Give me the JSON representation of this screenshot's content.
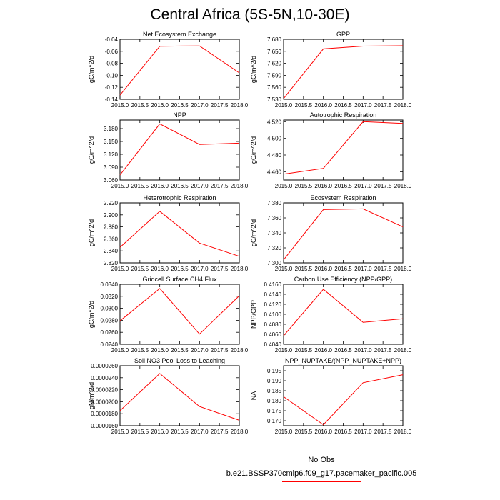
{
  "page": {
    "title": "Central Africa (5S-5N,10-30E)"
  },
  "legend": {
    "obs_label": "No Obs",
    "model_label": "b.e21.BSSP370cmip6.f09_g17.pacemaker_pacific.005",
    "obs_color": "#8f8fff",
    "model_color": "#ff0000"
  },
  "chart_data": [
    {
      "type": "line",
      "title": "Net Ecosystem Exchange",
      "ylabel": "gC/m^2/d",
      "xlim": [
        2015.0,
        2018.0
      ],
      "ylim": [
        -0.14,
        -0.04
      ],
      "x_ticks": [
        "2015.0",
        "2015.5",
        "2016.0",
        "2016.5",
        "2017.0",
        "2017.5",
        "2018.0"
      ],
      "y_ticks": [
        "-0.04",
        "-0.06",
        "-0.08",
        "-0.10",
        "-0.12",
        "-0.14"
      ],
      "series": [
        {
          "x": [
            2015,
            2016,
            2017,
            2018
          ],
          "values": [
            -0.133,
            -0.0515,
            -0.051,
            -0.096
          ],
          "color": "#ff0000"
        }
      ]
    },
    {
      "type": "line",
      "title": "GPP",
      "ylabel": "gC/m^2/d",
      "xlim": [
        2015.0,
        2018.0
      ],
      "ylim": [
        7.53,
        7.68
      ],
      "x_ticks": [
        "2015.0",
        "2015.5",
        "2016.0",
        "2016.5",
        "2017.0",
        "2017.5",
        "2018.0"
      ],
      "y_ticks": [
        "7.680",
        "7.650",
        "7.620",
        "7.590",
        "7.560",
        "7.530"
      ],
      "series": [
        {
          "x": [
            2015,
            2016,
            2017,
            2018
          ],
          "values": [
            7.532,
            7.656,
            7.663,
            7.664
          ],
          "color": "#ff0000"
        }
      ]
    },
    {
      "type": "line",
      "title": "NPP",
      "ylabel": "gC/m^2/d",
      "xlim": [
        2015.0,
        2018.0
      ],
      "ylim": [
        3.06,
        3.2
      ],
      "x_ticks": [
        "2015.0",
        "2015.5",
        "2016.0",
        "2016.5",
        "2017.0",
        "2017.5",
        "2018.0"
      ],
      "y_ticks": [
        "3.180",
        "3.150",
        "3.120",
        "3.090",
        "3.060"
      ],
      "series": [
        {
          "x": [
            2015,
            2016,
            2017,
            2018
          ],
          "values": [
            3.072,
            3.191,
            3.143,
            3.146
          ],
          "color": "#ff0000"
        }
      ]
    },
    {
      "type": "line",
      "title": "Autotrophic Respiration",
      "ylabel": "gC/m^2/d",
      "xlim": [
        2015.0,
        2018.0
      ],
      "ylim": [
        4.45,
        4.522
      ],
      "x_ticks": [
        "2015.0",
        "2015.5",
        "2016.0",
        "2016.5",
        "2017.0",
        "2017.5",
        "2018.0"
      ],
      "y_ticks": [
        "4.520",
        "4.500",
        "4.480",
        "4.460"
      ],
      "series": [
        {
          "x": [
            2015,
            2016,
            2017,
            2018
          ],
          "values": [
            4.457,
            4.464,
            4.52,
            4.518
          ],
          "color": "#ff0000"
        }
      ]
    },
    {
      "type": "line",
      "title": "Heterotrophic Respiration",
      "ylabel": "gC/m^2/d",
      "xlim": [
        2015.0,
        2018.0
      ],
      "ylim": [
        2.82,
        2.92
      ],
      "x_ticks": [
        "2015.0",
        "2015.5",
        "2016.0",
        "2016.5",
        "2017.0",
        "2017.5",
        "2018.0"
      ],
      "y_ticks": [
        "2.920",
        "2.900",
        "2.880",
        "2.860",
        "2.840",
        "2.820"
      ],
      "series": [
        {
          "x": [
            2015,
            2016,
            2017,
            2018
          ],
          "values": [
            2.846,
            2.906,
            2.853,
            2.831
          ],
          "color": "#ff0000"
        }
      ]
    },
    {
      "type": "line",
      "title": "Ecosystem Respiration",
      "ylabel": "gC/m^2/d",
      "xlim": [
        2015.0,
        2018.0
      ],
      "ylim": [
        7.3,
        7.38
      ],
      "x_ticks": [
        "2015.0",
        "2015.5",
        "2016.0",
        "2016.5",
        "2017.0",
        "2017.5",
        "2018.0"
      ],
      "y_ticks": [
        "7.380",
        "7.360",
        "7.340",
        "7.320",
        "7.300"
      ],
      "series": [
        {
          "x": [
            2015,
            2016,
            2017,
            2018
          ],
          "values": [
            7.304,
            7.371,
            7.372,
            7.348
          ],
          "color": "#ff0000"
        }
      ]
    },
    {
      "type": "line",
      "title": "Gridcell Surface CH4 Flux",
      "ylabel": "gC/m^2/d",
      "xlim": [
        2015.0,
        2018.0
      ],
      "ylim": [
        0.024,
        0.034
      ],
      "x_ticks": [
        "2015.0",
        "2015.5",
        "2016.0",
        "2016.5",
        "2017.0",
        "2017.5",
        "2018.0"
      ],
      "y_ticks": [
        "0.0340",
        "0.0320",
        "0.0300",
        "0.0280",
        "0.0260",
        "0.0240"
      ],
      "series": [
        {
          "x": [
            2015,
            2016,
            2017,
            2018
          ],
          "values": [
            0.0279,
            0.0333,
            0.0257,
            0.0321
          ],
          "color": "#ff0000"
        }
      ]
    },
    {
      "type": "line",
      "title": "Carbon Use Efficiency (NPP/GPP)",
      "ylabel": "NPP/GPP",
      "xlim": [
        2015.0,
        2018.0
      ],
      "ylim": [
        0.404,
        0.416
      ],
      "x_ticks": [
        "2015.0",
        "2015.5",
        "2016.0",
        "2016.5",
        "2017.0",
        "2017.5",
        "2018.0"
      ],
      "y_ticks": [
        "0.4160",
        "0.4140",
        "0.4120",
        "0.4100",
        "0.4080",
        "0.4060",
        "0.4040"
      ],
      "series": [
        {
          "x": [
            2015,
            2016,
            2017,
            2018
          ],
          "values": [
            0.4057,
            0.415,
            0.4084,
            0.4091
          ],
          "color": "#ff0000"
        }
      ]
    },
    {
      "type": "line",
      "title": "Soil NO3 Pool Loss to Leaching",
      "ylabel": "gN/m^2/d",
      "xlim": [
        2015.0,
        2018.0
      ],
      "ylim": [
        1.6e-05,
        2.6e-05
      ],
      "x_ticks": [
        "2015.0",
        "2015.5",
        "2016.0",
        "2016.5",
        "2017.0",
        "2017.5",
        "2018.0"
      ],
      "y_ticks": [
        "0.0000260",
        "0.0000240",
        "0.0000220",
        "0.0000200",
        "0.0000180",
        "0.0000160"
      ],
      "series": [
        {
          "x": [
            2015,
            2016,
            2017,
            2018
          ],
          "values": [
            1.85e-05,
            2.47e-05,
            1.92e-05,
            1.69e-05
          ],
          "color": "#ff0000"
        }
      ]
    },
    {
      "type": "line",
      "title": "NPP_NUPTAKE/(NPP_NUPTAKE+NPP)",
      "ylabel": "NA",
      "xlim": [
        2015.0,
        2018.0
      ],
      "ylim": [
        0.1675,
        0.1975
      ],
      "x_ticks": [
        "2015.0",
        "2015.5",
        "2016.0",
        "2016.5",
        "2017.0",
        "2017.5",
        "2018.0"
      ],
      "y_ticks": [
        "0.195",
        "0.190",
        "0.185",
        "0.180",
        "0.175",
        "0.170"
      ],
      "series": [
        {
          "x": [
            2015,
            2016,
            2017,
            2018
          ],
          "values": [
            0.182,
            0.168,
            0.189,
            0.193
          ],
          "color": "#ff0000"
        }
      ]
    }
  ]
}
